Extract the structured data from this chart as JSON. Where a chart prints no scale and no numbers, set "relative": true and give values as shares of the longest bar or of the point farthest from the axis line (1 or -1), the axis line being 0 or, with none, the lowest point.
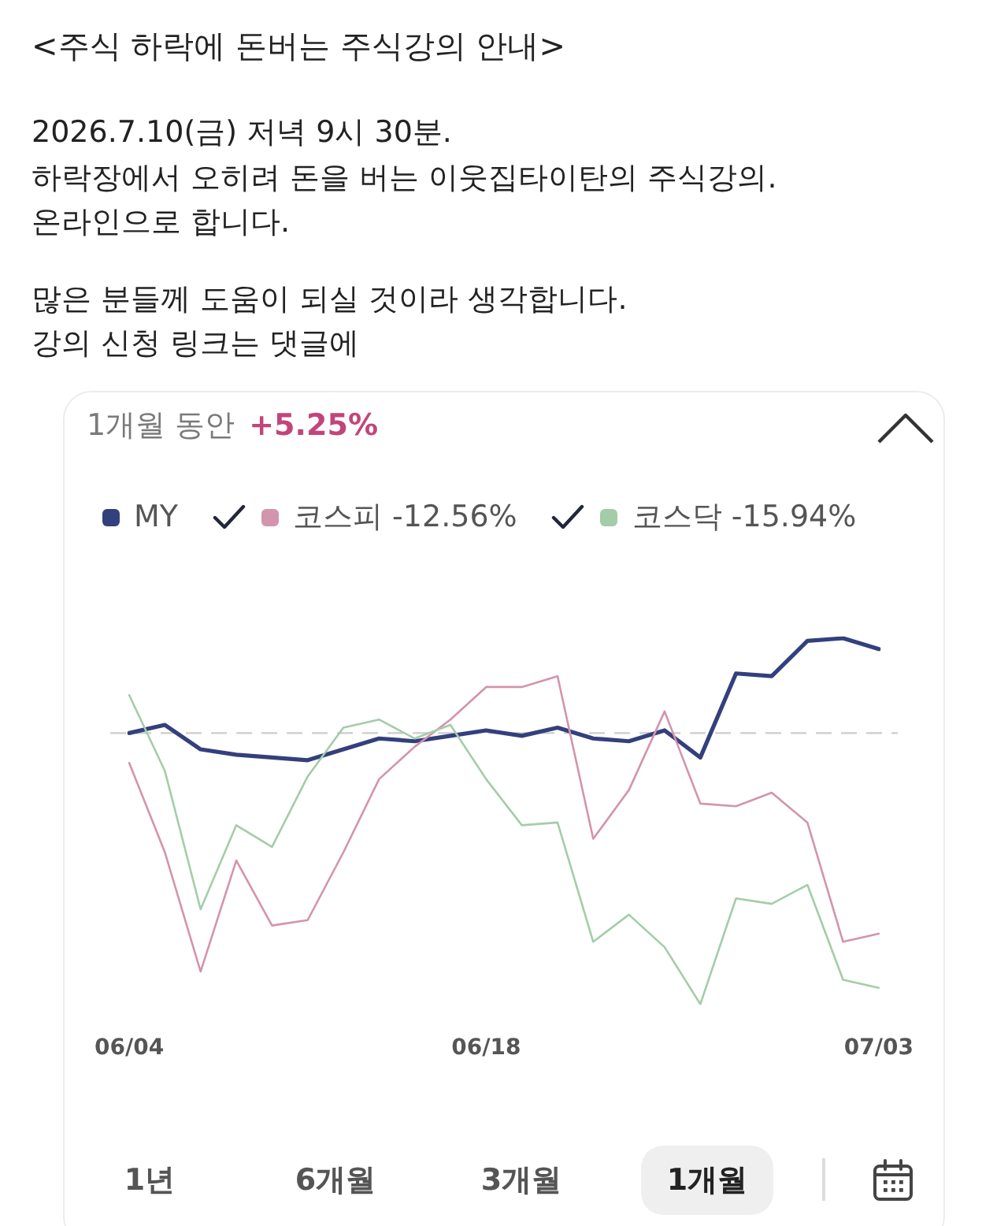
{
  "chart_data": {
    "type": "line",
    "title": "<주식 하락에 돈버는 주식강의 안내>",
    "subtitle": "2026.7.10(금) 저녁 9시 30분.\n하락장에서 오히려 돈을 버는 이웃집타이탄의 주식강의.\n온라인으로 합니다.\n\n많은 분들께 도움이 되실 것이라 생각합니다.\n강의 신청 링크는 댓글에",
    "annotations": [
      "1개월 동안 +5.25%",
      "1년",
      "6개월",
      "3개월",
      "1개월"
    ],
    "categories": [
      "06/04",
      null,
      null,
      null,
      null,
      null,
      null,
      null,
      null,
      null,
      "06/18",
      null,
      null,
      null,
      null,
      null,
      null,
      null,
      null,
      null,
      null,
      "07/03"
    ],
    "relative": true,
    "series": [
      {
        "name": "MY",
        "color": "#34407c",
        "values": [
          0.0,
          0.03,
          -0.06,
          -0.08,
          -0.09,
          -0.1,
          -0.06,
          -0.02,
          -0.03,
          -0.01,
          0.01,
          -0.01,
          0.02,
          -0.02,
          -0.03,
          0.01,
          -0.09,
          0.22,
          0.21,
          0.34,
          0.35,
          0.31
        ]
      },
      {
        "name": "코스피 -12.56%",
        "color": "#d394ad",
        "values": [
          -0.11,
          -0.44,
          -0.88,
          -0.47,
          -0.71,
          -0.69,
          -0.44,
          -0.17,
          -0.05,
          0.05,
          0.17,
          0.17,
          0.21,
          -0.39,
          -0.21,
          0.08,
          -0.26,
          -0.27,
          -0.22,
          -0.33,
          -0.77,
          -0.74
        ]
      },
      {
        "name": "코스닥 -15.94%",
        "color": "#a3cda8",
        "values": [
          0.14,
          -0.14,
          -0.65,
          -0.34,
          -0.42,
          -0.16,
          0.02,
          0.05,
          -0.02,
          0.03,
          -0.17,
          -0.34,
          -0.33,
          -0.77,
          -0.67,
          -0.79,
          -1,
          -0.61,
          -0.63,
          -0.56,
          -0.91,
          -0.94
        ]
      }
    ],
    "ref_lines": [
      {
        "axis": "y",
        "value": 0,
        "color": "#cccccc",
        "line_style": "dashed"
      }
    ],
    "legend": "top left",
    "grid": false,
    "marker": "none"
  }
}
